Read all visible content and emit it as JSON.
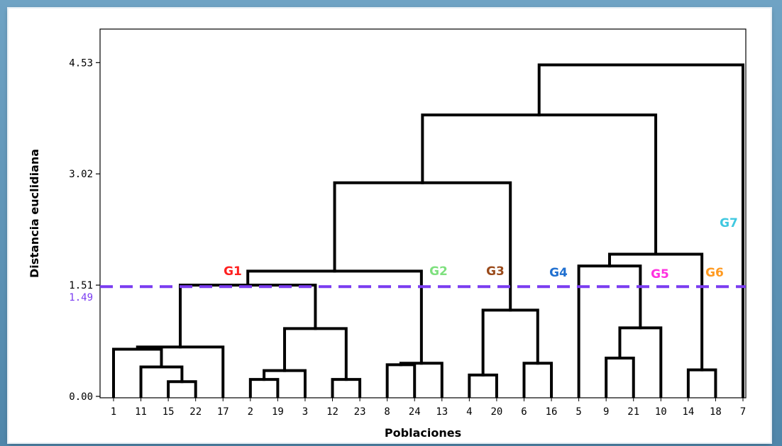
{
  "chart_data": {
    "type": "dendrogram",
    "xlabel": "Poblaciones",
    "ylabel": "Distancia euclidiana",
    "y_ticks": [
      "0.00",
      "1.51",
      "3.02",
      "4.53"
    ],
    "ylim": [
      0,
      5.0
    ],
    "leaf_order": [
      "1",
      "11",
      "15",
      "22",
      "17",
      "2",
      "19",
      "3",
      "12",
      "23",
      "8",
      "24",
      "13",
      "4",
      "20",
      "6",
      "16",
      "5",
      "9",
      "21",
      "10",
      "14",
      "18",
      "7"
    ],
    "merges": [
      {
        "a": "15",
        "b": "22",
        "height": 0.2
      },
      {
        "a": "11",
        "b": "[15,22]",
        "height": 0.4
      },
      {
        "a": "1",
        "b": "[11,15,22]",
        "height": 0.64
      },
      {
        "a": "[1,11,15,22]",
        "b": "17",
        "height": 0.67
      },
      {
        "a": "2",
        "b": "19",
        "height": 0.23
      },
      {
        "a": "[2,19]",
        "b": "3",
        "height": 0.35
      },
      {
        "a": "12",
        "b": "23",
        "height": 0.23
      },
      {
        "a": "[2,19,3]",
        "b": "[12,23]",
        "height": 0.92
      },
      {
        "a": "[1,11,15,22,17]",
        "b": "[2,19,3,12,23]",
        "height": 1.51
      },
      {
        "a": "8",
        "b": "24",
        "height": 0.43
      },
      {
        "a": "[8,24]",
        "b": "13",
        "height": 0.45
      },
      {
        "a": "[G1]",
        "b": "[8,24,13]",
        "height": 1.7
      },
      {
        "a": "4",
        "b": "20",
        "height": 0.29
      },
      {
        "a": "6",
        "b": "16",
        "height": 0.45
      },
      {
        "a": "[4,20]",
        "b": "[6,16]",
        "height": 1.17
      },
      {
        "a": "[G1,G2]",
        "b": "[G3]",
        "height": 2.9
      },
      {
        "a": "9",
        "b": "21",
        "height": 0.52
      },
      {
        "a": "[9,21]",
        "b": "10",
        "height": 0.93
      },
      {
        "a": "5",
        "b": "[9,21,10]",
        "height": 1.77
      },
      {
        "a": "14",
        "b": "18",
        "height": 0.36
      },
      {
        "a": "[5,9,21,10]",
        "b": "[14,18]",
        "height": 1.93
      },
      {
        "a": "[G1,G2,G3]",
        "b": "[G4,G5,G6]",
        "height": 3.82
      },
      {
        "a": "[...]",
        "b": "7",
        "height": 4.5
      }
    ],
    "cut_line": {
      "value": 1.49,
      "label": "1.49",
      "color": "#7a3cf0"
    },
    "groups": [
      {
        "label": "G1",
        "color": "#ff2020"
      },
      {
        "label": "G2",
        "color": "#7ee07e"
      },
      {
        "label": "G3",
        "color": "#9a4a1a"
      },
      {
        "label": "G4",
        "color": "#2070d0"
      },
      {
        "label": "G5",
        "color": "#ff30e0"
      },
      {
        "label": "G6",
        "color": "#ff9a20"
      },
      {
        "label": "G7",
        "color": "#40c8e0"
      }
    ]
  }
}
